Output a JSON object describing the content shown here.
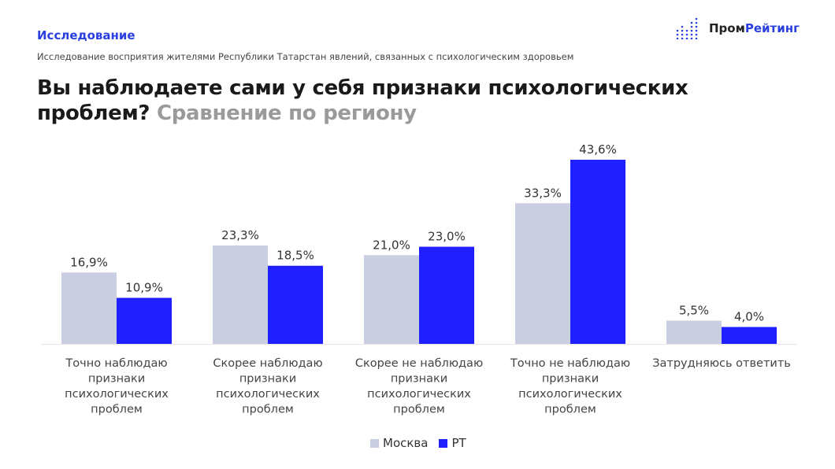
{
  "header": {
    "section": "Исследование",
    "subtitle": "Исследование восприятия жителями Республики Татарстан явлений, связанных с психологическим здоровьем",
    "title_main": "Вы наблюдаете сами у себя признаки психологических проблем?",
    "title_accent": "Сравнение по региону"
  },
  "logo": {
    "part1": "Пром",
    "part2": "Рейтинг",
    "icon": "dot-bars-icon"
  },
  "colors": {
    "moscow": "#c9cee0",
    "rt": "#2020ff",
    "accent": "#2a3fe0"
  },
  "chart_data": {
    "type": "bar",
    "categories": [
      [
        "Точно наблюдаю",
        "признаки",
        "психологических",
        "проблем"
      ],
      [
        "Скорее наблюдаю",
        "признаки",
        "психологических",
        "проблем"
      ],
      [
        "Скорее не наблюдаю",
        "признаки",
        "психологических",
        "проблем"
      ],
      [
        "Точно не наблюдаю",
        "признаки",
        "психологических",
        "проблем"
      ],
      [
        "Затрудняюсь ответить"
      ]
    ],
    "series": [
      {
        "name": "Москва",
        "values": [
          16.9,
          23.3,
          21.0,
          33.3,
          5.5
        ],
        "labels": [
          "16,9%",
          "23,3%",
          "21,0%",
          "33,3%",
          "5,5%"
        ]
      },
      {
        "name": "РТ",
        "values": [
          10.9,
          18.5,
          23.0,
          43.6,
          4.0
        ],
        "labels": [
          "10,9%",
          "18,5%",
          "23,0%",
          "43,6%",
          "4,0%"
        ]
      }
    ],
    "ylim": [
      0,
      45
    ],
    "grid": false,
    "legend": "bottom"
  }
}
